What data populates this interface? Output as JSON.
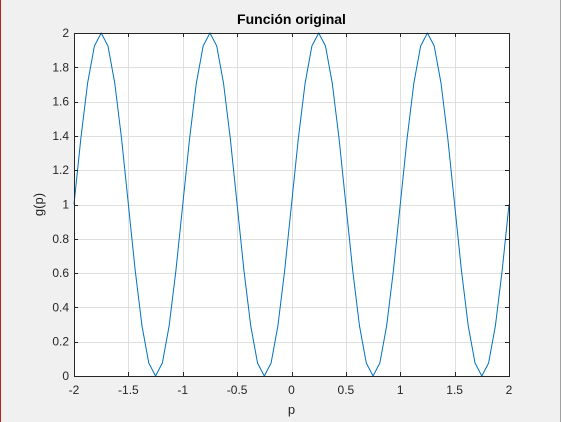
{
  "chart_data": {
    "type": "line",
    "title": "Función original",
    "xlabel": "p",
    "ylabel": "g(p)",
    "xlim": [
      -2,
      2
    ],
    "ylim": [
      0,
      2
    ],
    "grid": true,
    "x_ticks": [
      -2,
      -1.5,
      -1,
      -0.5,
      0,
      0.5,
      1,
      1.5,
      2
    ],
    "x_tick_labels": [
      "-2",
      "-1.5",
      "-1",
      "-0.5",
      "0",
      "0.5",
      "1",
      "1.5",
      "2"
    ],
    "y_ticks": [
      0,
      0.2,
      0.4,
      0.6,
      0.8,
      1,
      1.2,
      1.4,
      1.6,
      1.8,
      2
    ],
    "y_tick_labels": [
      "0",
      "0.2",
      "0.4",
      "0.6",
      "0.8",
      "1",
      "1.2",
      "1.4",
      "1.6",
      "1.8",
      "2"
    ],
    "series": [
      {
        "color": "#0072bd",
        "x": [
          -2,
          -1.9375,
          -1.875,
          -1.8125,
          -1.75,
          -1.6875,
          -1.625,
          -1.5625,
          -1.5,
          -1.4375,
          -1.375,
          -1.3125,
          -1.25,
          -1.1875,
          -1.125,
          -1.0625,
          -1,
          -0.9375,
          -0.875,
          -0.8125,
          -0.75,
          -0.6875,
          -0.625,
          -0.5625,
          -0.5,
          -0.4375,
          -0.375,
          -0.3125,
          -0.25,
          -0.1875,
          -0.125,
          -0.0625,
          0,
          0.0625,
          0.125,
          0.1875,
          0.25,
          0.3125,
          0.375,
          0.4375,
          0.5,
          0.5625,
          0.625,
          0.6875,
          0.75,
          0.8125,
          0.875,
          0.9375,
          1,
          1.0625,
          1.125,
          1.1875,
          1.25,
          1.3125,
          1.375,
          1.4375,
          1.5,
          1.5625,
          1.625,
          1.6875,
          1.75,
          1.8125,
          1.875,
          1.9375,
          2
        ],
        "y": [
          1,
          1.383,
          1.707,
          1.924,
          2,
          1.924,
          1.707,
          1.383,
          1,
          0.617,
          0.293,
          0.076,
          0,
          0.076,
          0.293,
          0.617,
          1,
          1.383,
          1.707,
          1.924,
          2,
          1.924,
          1.707,
          1.383,
          1,
          0.617,
          0.293,
          0.076,
          0,
          0.076,
          0.293,
          0.617,
          1,
          1.383,
          1.707,
          1.924,
          2,
          1.924,
          1.707,
          1.383,
          1,
          0.617,
          0.293,
          0.076,
          0,
          0.076,
          0.293,
          0.617,
          1,
          1.383,
          1.707,
          1.924,
          2,
          1.924,
          1.707,
          1.383,
          1,
          0.617,
          0.293,
          0.076,
          0,
          0.076,
          0.293,
          0.617,
          1
        ]
      }
    ]
  }
}
